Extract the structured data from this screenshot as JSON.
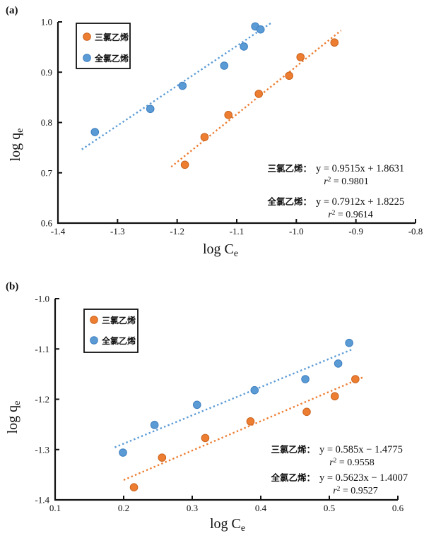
{
  "page": {
    "background": "#ffffff"
  },
  "colors": {
    "orange": "#ED7D31",
    "orange_edge": "#c9641f",
    "blue": "#5B9BD5",
    "blue_edge": "#3f7fc0",
    "axis": "#111111"
  },
  "chart_data": [
    {
      "type": "scatter",
      "panel_label": "(a)",
      "xlabel": {
        "main": "log C",
        "sub": "e"
      },
      "ylabel": {
        "main": "log q",
        "sub": "e"
      },
      "xlim": [
        -1.4,
        -0.8
      ],
      "ylim": [
        0.6,
        1.0
      ],
      "xticks": [
        -1.4,
        -1.3,
        -1.2,
        -1.1,
        -1.0,
        -0.9,
        -0.8
      ],
      "xtick_labels": [
        "-1.4",
        "-1.3",
        "-1.2",
        "-1.1",
        "-1.0",
        "-0.9",
        "-0.8"
      ],
      "yticks": [
        1.0,
        0.9,
        0.8,
        0.7,
        0.6
      ],
      "ytick_labels": [
        "1.0",
        "0.9",
        "0.8",
        "0.7",
        "0.6"
      ],
      "grid": false,
      "legend_position": "top-left-inside",
      "series": [
        {
          "id": "tce",
          "name": "三氯乙烯",
          "color_key": "orange",
          "points": [
            [
              -1.187,
              0.716
            ],
            [
              -1.154,
              0.771
            ],
            [
              -1.114,
              0.815
            ],
            [
              -1.063,
              0.857
            ],
            [
              -1.012,
              0.893
            ],
            [
              -0.993,
              0.93
            ],
            [
              -0.936,
              0.959
            ]
          ],
          "trendline": {
            "slope": 0.9515,
            "intercept": 1.8631,
            "x_range": [
              -1.21,
              -0.925
            ]
          },
          "annotation_label": "三氯乙烯：",
          "equation": "y = 0.9515x + 1.8631",
          "r_squared": "0.9801"
        },
        {
          "id": "pce",
          "name": "全氯乙烯",
          "color_key": "blue",
          "points": [
            [
              -1.338,
              0.781
            ],
            [
              -1.245,
              0.827
            ],
            [
              -1.191,
              0.873
            ],
            [
              -1.121,
              0.913
            ],
            [
              -1.088,
              0.951
            ],
            [
              -1.069,
              0.991
            ],
            [
              -1.06,
              0.985
            ]
          ],
          "trendline": {
            "slope": 0.7912,
            "intercept": 1.8225,
            "x_range": [
              -1.36,
              -1.04
            ]
          },
          "annotation_label": "全氯乙烯：",
          "equation": "y = 0.7912x + 1.8225",
          "r_squared": "0.9614"
        }
      ]
    },
    {
      "type": "scatter",
      "panel_label": "(b)",
      "xlabel": {
        "main": "log C",
        "sub": "e"
      },
      "ylabel": {
        "main": "log q",
        "sub": "e"
      },
      "xlim": [
        0.1,
        0.6
      ],
      "ylim": [
        -1.4,
        -1.0
      ],
      "xticks": [
        0.1,
        0.2,
        0.3,
        0.4,
        0.5,
        0.6
      ],
      "xtick_labels": [
        "0.1",
        "0.2",
        "0.3",
        "0.4",
        "0.5",
        "0.6"
      ],
      "yticks": [
        -1.0,
        -1.1,
        -1.2,
        -1.3,
        -1.4
      ],
      "ytick_labels": [
        "-1.0",
        "-1.1",
        "-1.2",
        "-1.3",
        "-1.4"
      ],
      "grid": false,
      "legend_position": "top-left-inside",
      "series": [
        {
          "id": "tce",
          "name": "三氯乙烯",
          "color_key": "orange",
          "points": [
            [
              0.215,
              -1.375
            ],
            [
              0.256,
              -1.316
            ],
            [
              0.319,
              -1.277
            ],
            [
              0.385,
              -1.244
            ],
            [
              0.467,
              -1.225
            ],
            [
              0.508,
              -1.194
            ],
            [
              0.538,
              -1.16
            ]
          ],
          "trendline": {
            "slope": 0.585,
            "intercept": -1.4775,
            "x_range": [
              0.2,
              0.55
            ]
          },
          "annotation_label": "三氯乙烯：",
          "equation": "y = 0.585x − 1.4775",
          "r_squared": "0.9558"
        },
        {
          "id": "pce",
          "name": "全氯乙烯",
          "color_key": "blue",
          "points": [
            [
              0.199,
              -1.306
            ],
            [
              0.245,
              -1.251
            ],
            [
              0.307,
              -1.211
            ],
            [
              0.391,
              -1.182
            ],
            [
              0.465,
              -1.16
            ],
            [
              0.513,
              -1.129
            ],
            [
              0.529,
              -1.088
            ]
          ],
          "trendline": {
            "slope": 0.5623,
            "intercept": -1.4007,
            "x_range": [
              0.187,
              0.535
            ]
          },
          "annotation_label": "全氯乙烯：",
          "equation": "y = 0.5623x − 1.4007",
          "r_squared": "0.9527"
        }
      ]
    }
  ]
}
